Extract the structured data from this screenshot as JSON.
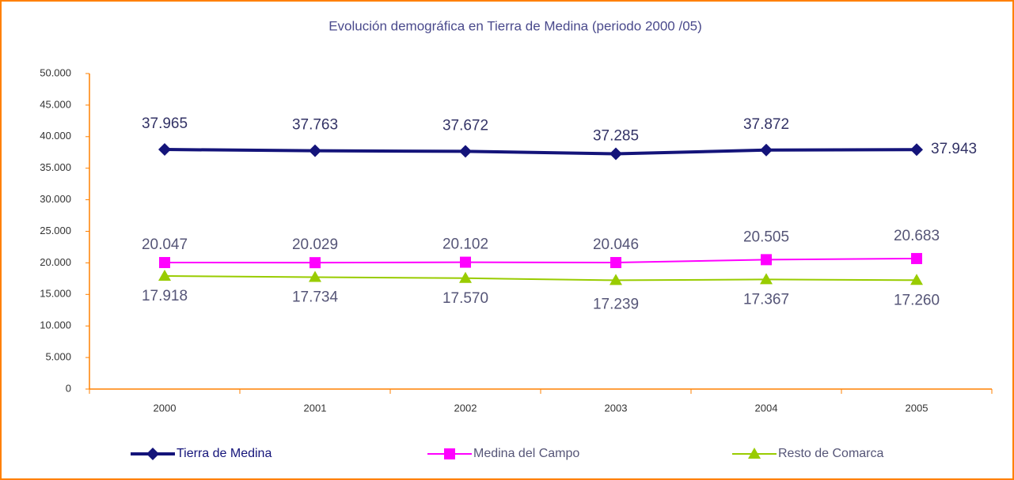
{
  "chart_data": {
    "type": "line",
    "title": "Evolución demográfica en Tierra de Medina (periodo 2000 /05)",
    "categories": [
      "2000",
      "2001",
      "2002",
      "2003",
      "2004",
      "2005"
    ],
    "series": [
      {
        "name": "Tierra de Medina",
        "color": "#14147a",
        "marker": "diamond",
        "values": [
          37965,
          37763,
          37672,
          37285,
          37872,
          37943
        ],
        "value_labels": [
          "37.965",
          "37.763",
          "37.672",
          "37.285",
          "37.872",
          "37.943"
        ]
      },
      {
        "name": "Medina del Campo",
        "color": "#ff00ff",
        "marker": "square",
        "values": [
          20047,
          20029,
          20102,
          20046,
          20505,
          20683
        ],
        "value_labels": [
          "20.047",
          "20.029",
          "20.102",
          "20.046",
          "20.505",
          "20.683"
        ]
      },
      {
        "name": "Resto de Comarca",
        "color": "#99cc00",
        "marker": "triangle",
        "values": [
          17918,
          17734,
          17570,
          17239,
          17367,
          17260
        ],
        "value_labels": [
          "17.918",
          "17.734",
          "17.570",
          "17.239",
          "17.367",
          "17.260"
        ]
      }
    ],
    "ylim": [
      0,
      50000
    ],
    "yticks": [
      0,
      {
        "value": 5000,
        "label": "5.000"
      },
      {
        "value": 10000,
        "label": "10.000"
      },
      {
        "value": 15000,
        "label": "15.000"
      },
      {
        "value": 20000,
        "label": "20.000"
      },
      {
        "value": 25000,
        "label": "25.000"
      },
      {
        "value": 30000,
        "label": "30.000"
      },
      {
        "value": 35000,
        "label": "35.000"
      },
      {
        "value": 40000,
        "label": "40.000"
      },
      {
        "value": 45000,
        "label": "45.000"
      },
      {
        "value": 50000,
        "label": "50.000"
      }
    ],
    "grid": false
  }
}
